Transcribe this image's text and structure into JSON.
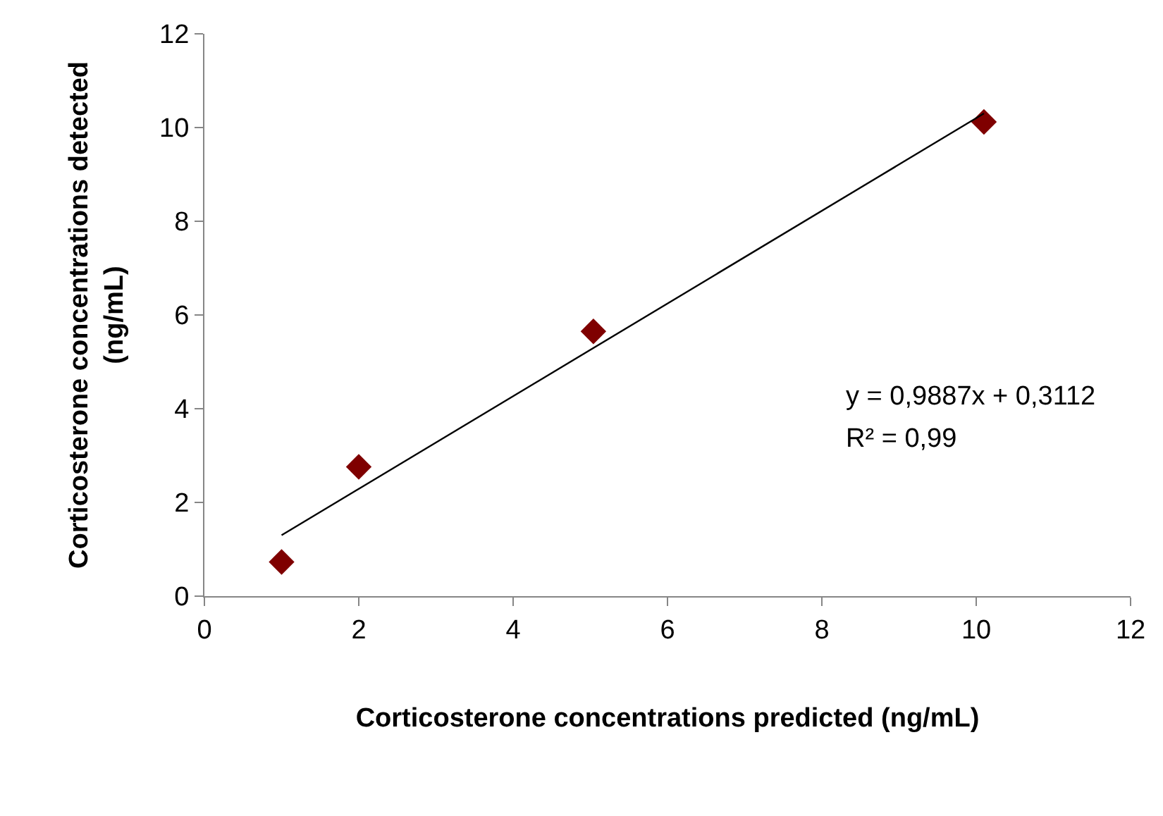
{
  "chart_data": {
    "type": "scatter",
    "xlabel": "Corticosterone concentrations predicted (ng/mL)",
    "ylabel": "Corticosterone concentrations detected\n(ng/mL)",
    "series": [
      {
        "color": "#7f0000",
        "marker": "diamond",
        "x": [
          1,
          2,
          5.04,
          10.1
        ],
        "values": [
          0.73,
          2.76,
          5.65,
          10.12
        ]
      },
      {
        "type": "line",
        "color": "#000000",
        "marker": "none",
        "line_style": "solid",
        "x": [
          1,
          10.1
        ],
        "values": [
          1.3,
          10.3
        ]
      }
    ],
    "annotations": [
      "y = 0,9887x + 0,3112",
      "R² = 0,99"
    ],
    "xlim": [
      0,
      12
    ],
    "xticks": [
      0,
      2,
      4,
      6,
      8,
      10,
      12
    ],
    "ylim": [
      0,
      12
    ],
    "yticks": [
      0,
      2,
      4,
      6,
      8,
      10,
      12
    ]
  }
}
